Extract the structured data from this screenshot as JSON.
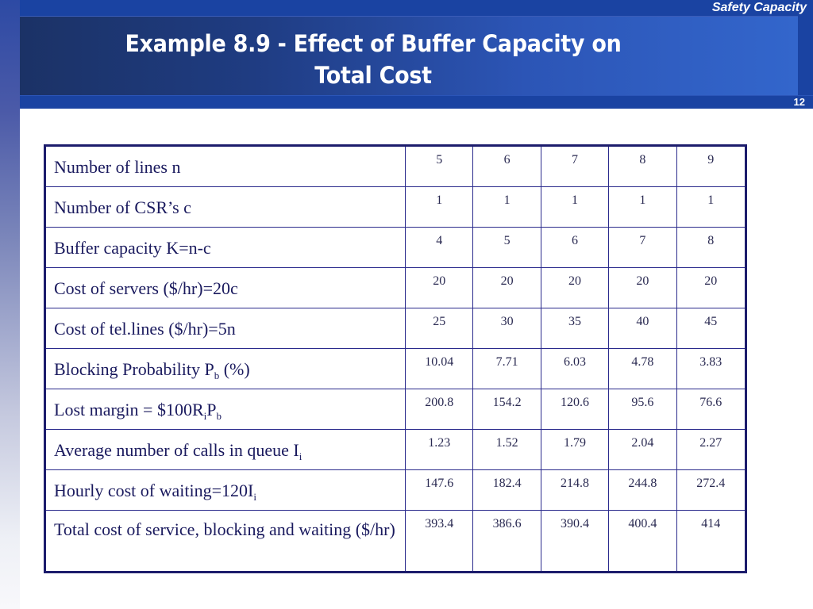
{
  "header": {
    "section_label": "Safety Capacity",
    "title_line1": "Example 8.9 - Effect of Buffer Capacity on",
    "title_line2": "Total Cost",
    "page_number": "12"
  },
  "colors": {
    "top_band": "#1a43a2",
    "panel_left": "#1b3266",
    "panel_right": "#3366cc",
    "table_border": "#1c1c6c",
    "label_text": "#1a1a5e"
  },
  "table": {
    "rows": [
      {
        "label": "Number of lines n",
        "label_main": "Number of lines n",
        "values": [
          "5",
          "6",
          "7",
          "8",
          "9"
        ]
      },
      {
        "label": "Number of CSR’s c",
        "label_main": "Number of CSR’s c",
        "values": [
          "1",
          "1",
          "1",
          "1",
          "1"
        ]
      },
      {
        "label": "Buffer capacity K=n-c",
        "label_main": "Buffer capacity K=n-c",
        "values": [
          "4",
          "5",
          "6",
          "7",
          "8"
        ]
      },
      {
        "label": "Cost of servers ($/hr)=20c",
        "label_main": "Cost of servers ($/hr)=20c",
        "values": [
          "20",
          "20",
          "20",
          "20",
          "20"
        ]
      },
      {
        "label": "Cost of tel.lines ($/hr)=5n",
        "label_main": "Cost of tel.lines ($/hr)=5n",
        "values": [
          "25",
          "30",
          "35",
          "40",
          "45"
        ]
      },
      {
        "label": "Blocking Probability Pb (%)",
        "label_parts": [
          "Blocking Probability P",
          "b",
          " (%)"
        ],
        "values": [
          "10.04",
          "7.71",
          "6.03",
          "4.78",
          "3.83"
        ]
      },
      {
        "label": "Lost margin = $100RiPb",
        "label_parts": [
          "Lost margin = $100R",
          "i",
          "P",
          "b"
        ],
        "values": [
          "200.8",
          "154.2",
          "120.6",
          "95.6",
          "76.6"
        ]
      },
      {
        "label": "Average number of calls in queue Ii",
        "label_parts": [
          "Average number of calls in queue I",
          "i"
        ],
        "values": [
          "1.23",
          "1.52",
          "1.79",
          "2.04",
          "2.27"
        ]
      },
      {
        "label": "Hourly cost of waiting=120Ii",
        "label_parts": [
          "Hourly cost of waiting=120I",
          "i"
        ],
        "values": [
          "147.6",
          "182.4",
          "214.8",
          "244.8",
          "272.4"
        ]
      },
      {
        "label": "Total cost of service, blocking and waiting ($/hr)",
        "label_main": "Total cost of service, blocking and waiting ($/hr)",
        "values": [
          "393.4",
          "386.6",
          "390.4",
          "400.4",
          "414"
        ]
      }
    ]
  }
}
